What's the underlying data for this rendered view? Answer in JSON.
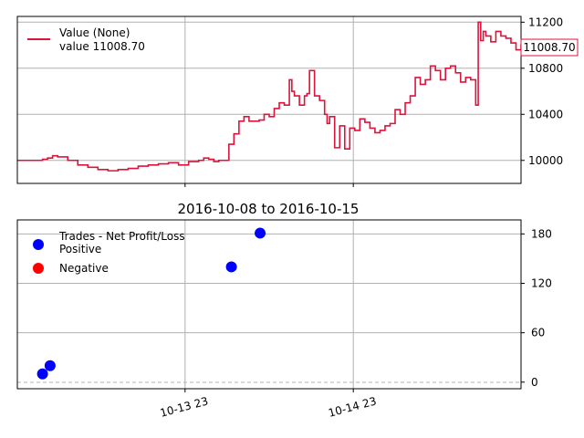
{
  "chart_data": [
    {
      "type": "line",
      "title": "",
      "ylim": [
        9800,
        11250
      ],
      "yticks": [
        10000,
        10400,
        10800,
        11200
      ],
      "grid": true,
      "legend": {
        "placement": "top-left",
        "entries": [
          {
            "label": "Value (None)",
            "color": "#dc143c"
          },
          {
            "label": "value 11008.70"
          }
        ]
      },
      "last_value_label": "11008.70",
      "line_color": "#dc143c",
      "series": [
        {
          "name": "Value (None)",
          "x_fraction": [
            0.0,
            0.03,
            0.05,
            0.06,
            0.07,
            0.08,
            0.1,
            0.12,
            0.14,
            0.16,
            0.18,
            0.2,
            0.22,
            0.24,
            0.26,
            0.28,
            0.3,
            0.32,
            0.34,
            0.36,
            0.37,
            0.38,
            0.39,
            0.4,
            0.41,
            0.42,
            0.43,
            0.44,
            0.45,
            0.46,
            0.47,
            0.48,
            0.49,
            0.5,
            0.51,
            0.52,
            0.53,
            0.54,
            0.545,
            0.55,
            0.56,
            0.57,
            0.575,
            0.58,
            0.59,
            0.6,
            0.61,
            0.615,
            0.62,
            0.63,
            0.64,
            0.65,
            0.66,
            0.67,
            0.68,
            0.69,
            0.7,
            0.71,
            0.72,
            0.73,
            0.74,
            0.75,
            0.76,
            0.77,
            0.78,
            0.79,
            0.8,
            0.81,
            0.82,
            0.83,
            0.84,
            0.85,
            0.86,
            0.87,
            0.88,
            0.89,
            0.9,
            0.91,
            0.915,
            0.92,
            0.925,
            0.93,
            0.94,
            0.95,
            0.96,
            0.97,
            0.98,
            0.99,
            1.0
          ],
          "values": [
            10000,
            10000,
            10010,
            10020,
            10040,
            10030,
            10000,
            9960,
            9940,
            9920,
            9910,
            9920,
            9930,
            9950,
            9960,
            9970,
            9980,
            9960,
            9990,
            10000,
            10020,
            10010,
            9990,
            10000,
            10000,
            10140,
            10230,
            10340,
            10380,
            10340,
            10340,
            10350,
            10400,
            10380,
            10450,
            10500,
            10480,
            10700,
            10600,
            10560,
            10480,
            10560,
            10580,
            10780,
            10560,
            10520,
            10400,
            10320,
            10380,
            10110,
            10300,
            10100,
            10280,
            10260,
            10360,
            10330,
            10280,
            10240,
            10260,
            10300,
            10320,
            10440,
            10400,
            10500,
            10560,
            10720,
            10660,
            10700,
            10820,
            10780,
            10700,
            10800,
            10820,
            10760,
            10680,
            10720,
            10700,
            10480,
            11200,
            11040,
            11120,
            11080,
            11030,
            11120,
            11080,
            11060,
            11020,
            10960,
            11008.7
          ]
        }
      ]
    },
    {
      "type": "scatter",
      "title": "2016-10-08 to 2016-10-15",
      "ylim": [
        -8,
        197
      ],
      "yticks": [
        0,
        60,
        120,
        180
      ],
      "xtick_labels": [
        "10-13 23",
        "10-14 23"
      ],
      "grid": true,
      "legend": {
        "placement": "top-left",
        "entries": [
          {
            "label": "Trades - Net Profit/Loss",
            "color": ""
          },
          {
            "label": "Positive",
            "color": "#0000ff"
          },
          {
            "label": "Negative",
            "color": "#ff0000"
          }
        ]
      },
      "series": [
        {
          "name": "Positive",
          "color": "#0000ff",
          "x_fraction": [
            0.05,
            0.065,
            0.425,
            0.482
          ],
          "values": [
            10,
            20,
            140,
            181
          ]
        },
        {
          "name": "Negative",
          "color": "#ff0000",
          "x_fraction": [],
          "values": []
        }
      ]
    }
  ]
}
